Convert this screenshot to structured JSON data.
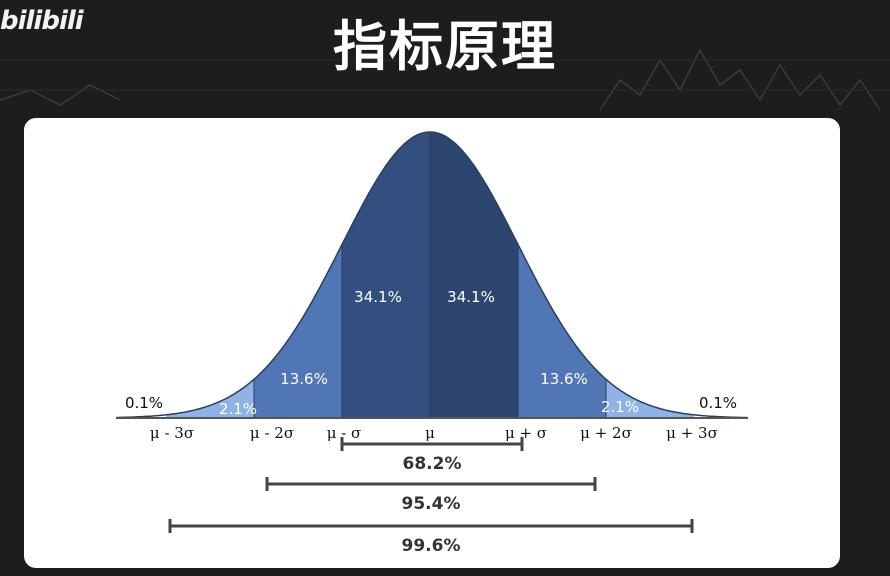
{
  "header": {
    "logo_text": "bilibili",
    "title": "指标原理"
  },
  "diagram": {
    "regions": [
      {
        "label": "0.1%",
        "color": ""
      },
      {
        "label": "2.1%",
        "color": "#8fb3e6"
      },
      {
        "label": "13.6%",
        "color": "#5076b6"
      },
      {
        "label": "34.1%",
        "color": "#334f7f"
      },
      {
        "label": "34.1%",
        "color": "#2d4670"
      },
      {
        "label": "13.6%",
        "color": "#5076b6"
      },
      {
        "label": "2.1%",
        "color": "#8fb3e6"
      },
      {
        "label": "0.1%",
        "color": ""
      }
    ],
    "axis_labels": [
      "μ - 3σ",
      "μ - 2σ",
      "μ - σ",
      "μ",
      "μ + σ",
      "μ + 2σ",
      "μ + 3σ"
    ],
    "ranges": [
      {
        "label": "68.2%",
        "from": "μ - σ",
        "to": "μ + σ"
      },
      {
        "label": "95.4%",
        "from": "μ - 2σ",
        "to": "μ + 2σ"
      },
      {
        "label": "99.6%",
        "from": "μ - 3σ",
        "to": "μ + 3σ"
      }
    ]
  }
}
